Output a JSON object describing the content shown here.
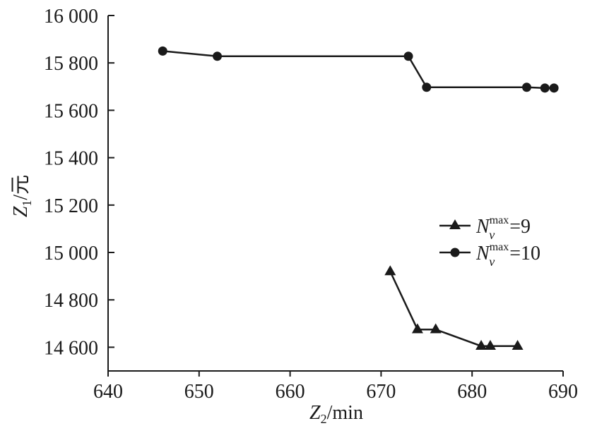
{
  "chart_data": {
    "type": "line",
    "xlabel": {
      "base": "Z",
      "sub": "2",
      "unit": "/min"
    },
    "ylabel": {
      "base": "Z",
      "sub": "1",
      "unit": "/元"
    },
    "xlim": [
      640,
      690
    ],
    "ylim": [
      14500,
      16000
    ],
    "xticks": [
      640,
      650,
      660,
      670,
      680,
      690
    ],
    "yticks": [
      14600,
      14800,
      15000,
      15200,
      15400,
      15600,
      15800,
      16000
    ],
    "xtick_labels": [
      "640",
      "650",
      "660",
      "670",
      "680",
      "690"
    ],
    "ytick_labels": [
      "14 600",
      "14 800",
      "15 000",
      "15 200",
      "15 400",
      "15 600",
      "15 800",
      "16 000"
    ],
    "grid": false,
    "legend_position": "right",
    "series": [
      {
        "name": "N_v^max =9",
        "legend": {
          "base": "N",
          "sub": "v",
          "sup": "max",
          "suffix": " =9"
        },
        "marker": "triangle",
        "color": "#1a1a1a",
        "points": [
          {
            "x": 671,
            "y": 14920
          },
          {
            "x": 674,
            "y": 14675
          },
          {
            "x": 676,
            "y": 14675
          },
          {
            "x": 681,
            "y": 14605
          },
          {
            "x": 682,
            "y": 14605
          },
          {
            "x": 685,
            "y": 14605
          }
        ]
      },
      {
        "name": "N_v^max =10",
        "legend": {
          "base": "N",
          "sub": "v",
          "sup": "max",
          "suffix": " =10"
        },
        "marker": "circle",
        "color": "#1a1a1a",
        "points": [
          {
            "x": 646,
            "y": 15850
          },
          {
            "x": 652,
            "y": 15828
          },
          {
            "x": 673,
            "y": 15828
          },
          {
            "x": 675,
            "y": 15697
          },
          {
            "x": 686,
            "y": 15697
          },
          {
            "x": 688,
            "y": 15694
          },
          {
            "x": 689,
            "y": 15694
          }
        ]
      }
    ]
  }
}
